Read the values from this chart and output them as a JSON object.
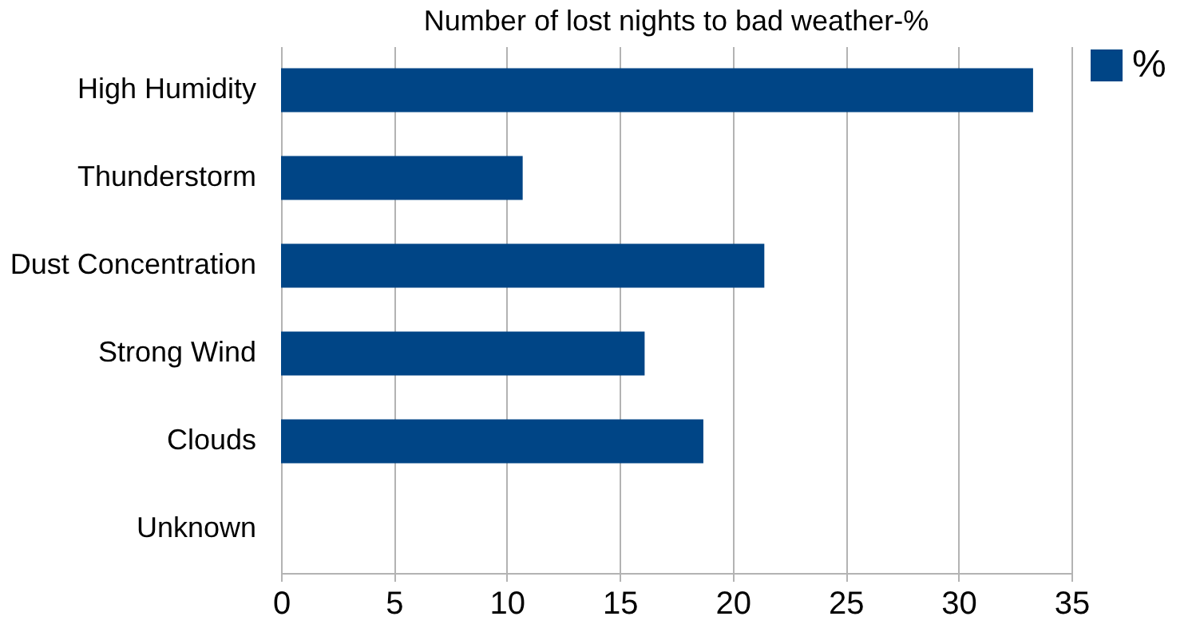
{
  "chart_data": {
    "type": "bar",
    "orientation": "horizontal",
    "title": "Number of lost nights to bad weather-%",
    "categories": [
      "High Humidity",
      "Thunderstorm",
      "Dust Concentration",
      "Strong Wind",
      "Clouds",
      "Unknown"
    ],
    "series": [
      {
        "name": "%",
        "color": "#004586",
        "values": [
          33.3,
          10.7,
          21.4,
          16.1,
          18.7,
          0
        ]
      }
    ],
    "xlim": [
      0,
      35
    ],
    "xticks": [
      0,
      5,
      10,
      15,
      20,
      25,
      30,
      35
    ],
    "grid": "x",
    "legend": "right"
  }
}
